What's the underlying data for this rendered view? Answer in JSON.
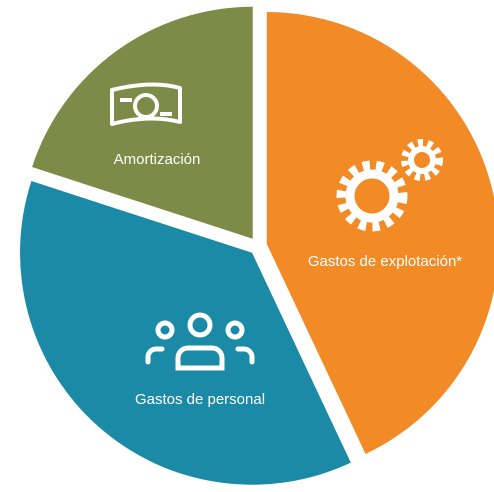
{
  "chart_data": {
    "type": "pie",
    "categories": [
      "Gastos de explotación*",
      "Gastos de personal",
      "Amortización"
    ],
    "values": [
      43,
      37,
      20
    ],
    "colors": [
      "#f28a26",
      "#1a8aa6",
      "#7d8a48"
    ]
  }
}
